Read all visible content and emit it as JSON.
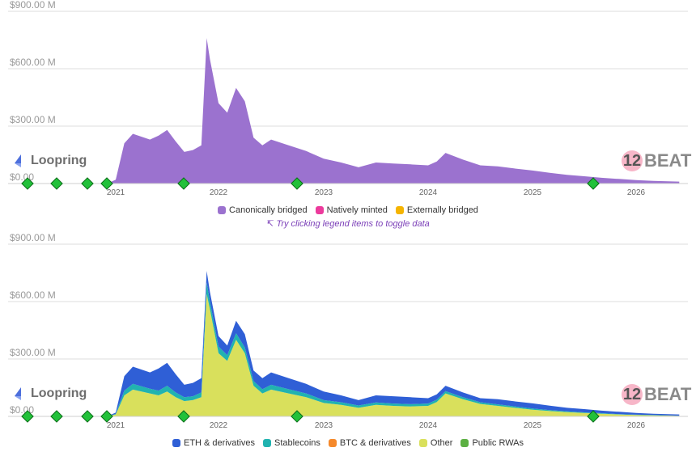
{
  "colors": {
    "canonically_bridged": "#9b72cf",
    "natively_minted": "#ec3a9c",
    "externally_bridged": "#f5b400",
    "eth": "#2f5fd6",
    "stablecoins": "#21b3b0",
    "btc": "#f5892b",
    "other": "#d9e05c",
    "public_rwas": "#5cb043",
    "grid": "#dddddd",
    "axis_text": "#9a9a9a",
    "marker": "#22c13a"
  },
  "brand": {
    "name": "Loopring",
    "icon": "loopring-logo-icon"
  },
  "watermark": {
    "text": "BEAT",
    "digit": "12",
    "icon": "l2beat-logo-icon"
  },
  "hint": {
    "text": "Try clicking legend items to toggle data",
    "icon": "cursor-click-icon"
  },
  "legend_top": [
    {
      "label": "Canonically bridged",
      "color": "#9b72cf"
    },
    {
      "label": "Natively minted",
      "color": "#ec3a9c"
    },
    {
      "label": "Externally bridged",
      "color": "#f5b400"
    }
  ],
  "legend_bottom": [
    {
      "label": "ETH & derivatives",
      "color": "#2f5fd6"
    },
    {
      "label": "Stablecoins",
      "color": "#21b3b0"
    },
    {
      "label": "BTC & derivatives",
      "color": "#f5892b"
    },
    {
      "label": "Other",
      "color": "#d9e05c"
    },
    {
      "label": "Public RWAs",
      "color": "#5cb043"
    }
  ],
  "chart_data": [
    {
      "type": "area",
      "title": "",
      "xlabel": "",
      "ylabel": "",
      "x_ticks": [
        "2021",
        "2022",
        "2023",
        "2024",
        "2025",
        "2026"
      ],
      "y_ticks": [
        "$0.00",
        "$300.00 M",
        "$600.00 M",
        "$900.00 M"
      ],
      "ylim": [
        0,
        900
      ],
      "y_unit": "M USD",
      "grid": true,
      "legend_position": "bottom",
      "x": [
        "2020-12",
        "2021-01",
        "2021-02",
        "2021-03",
        "2021-05",
        "2021-06",
        "2021-07",
        "2021-08",
        "2021-09",
        "2021-10",
        "2021-11",
        "2021-11-20",
        "2021-12",
        "2022-01",
        "2022-02",
        "2022-03",
        "2022-04",
        "2022-05",
        "2022-06",
        "2022-07",
        "2022-09",
        "2022-11",
        "2023-01",
        "2023-03",
        "2023-05",
        "2023-07",
        "2023-09",
        "2023-11",
        "2024-01",
        "2024-02",
        "2024-03",
        "2024-05",
        "2024-07",
        "2024-09",
        "2024-11",
        "2025-01",
        "2025-03",
        "2025-05",
        "2025-07",
        "2025-09",
        "2025-11",
        "2026-01",
        "2026-03",
        "2026-06"
      ],
      "series": [
        {
          "name": "Canonically bridged",
          "values": [
            0,
            20,
            210,
            260,
            230,
            250,
            280,
            220,
            165,
            175,
            200,
            760,
            650,
            420,
            370,
            500,
            430,
            240,
            200,
            230,
            200,
            170,
            130,
            110,
            85,
            110,
            105,
            100,
            95,
            115,
            160,
            125,
            95,
            90,
            78,
            68,
            56,
            45,
            38,
            30,
            24,
            18,
            14,
            10
          ]
        },
        {
          "name": "Natively minted",
          "values": [
            0,
            0,
            0,
            0,
            0,
            0,
            0,
            0,
            0,
            0,
            0,
            0,
            0,
            0,
            0,
            0,
            0,
            0,
            0,
            0,
            0,
            0,
            0,
            0,
            0,
            0,
            0,
            0,
            0,
            0,
            0,
            0,
            0,
            0,
            0,
            0,
            0,
            0,
            0,
            0,
            0,
            0,
            0,
            0
          ]
        },
        {
          "name": "Externally bridged",
          "values": [
            0,
            0,
            0,
            0,
            0,
            0,
            0,
            0,
            0,
            0,
            0,
            0,
            0,
            0,
            0,
            0,
            0,
            0,
            0,
            0,
            0,
            0,
            0,
            0,
            0,
            0,
            0,
            0,
            0,
            0,
            0,
            0,
            0,
            0,
            0,
            0,
            0,
            0,
            0,
            0,
            0,
            0,
            0,
            0
          ]
        }
      ]
    },
    {
      "type": "area",
      "title": "",
      "xlabel": "",
      "ylabel": "",
      "x_ticks": [
        "2021",
        "2022",
        "2023",
        "2024",
        "2025",
        "2026"
      ],
      "y_ticks": [
        "$0.00",
        "$300.00 M",
        "$600.00 M",
        "$900.00 M"
      ],
      "ylim": [
        0,
        900
      ],
      "y_unit": "M USD",
      "grid": true,
      "legend_position": "bottom",
      "x": [
        "2020-12",
        "2021-01",
        "2021-02",
        "2021-03",
        "2021-05",
        "2021-06",
        "2021-07",
        "2021-08",
        "2021-09",
        "2021-10",
        "2021-11",
        "2021-11-20",
        "2021-12",
        "2022-01",
        "2022-02",
        "2022-03",
        "2022-04",
        "2022-05",
        "2022-06",
        "2022-07",
        "2022-09",
        "2022-11",
        "2023-01",
        "2023-03",
        "2023-05",
        "2023-07",
        "2023-09",
        "2023-11",
        "2024-01",
        "2024-02",
        "2024-03",
        "2024-05",
        "2024-07",
        "2024-09",
        "2024-11",
        "2025-01",
        "2025-03",
        "2025-05",
        "2025-07",
        "2025-09",
        "2025-11",
        "2026-01",
        "2026-03",
        "2026-06"
      ],
      "series": [
        {
          "name": "Other",
          "values": [
            0,
            10,
            110,
            140,
            120,
            110,
            130,
            100,
            80,
            85,
            100,
            640,
            560,
            330,
            290,
            400,
            330,
            160,
            120,
            140,
            120,
            100,
            70,
            60,
            45,
            60,
            55,
            52,
            55,
            75,
            120,
            90,
            65,
            55,
            45,
            35,
            28,
            22,
            18,
            14,
            10,
            7,
            5,
            3
          ]
        },
        {
          "name": "Public RWAs",
          "values": [
            0,
            0,
            0,
            0,
            0,
            0,
            0,
            0,
            0,
            0,
            0,
            0,
            0,
            0,
            0,
            0,
            0,
            0,
            0,
            0,
            0,
            0,
            0,
            0,
            0,
            0,
            0,
            0,
            0,
            0,
            0,
            0,
            0,
            0,
            0,
            0,
            0,
            0,
            0,
            0,
            0,
            0,
            0,
            0
          ]
        },
        {
          "name": "BTC & derivatives",
          "values": [
            0,
            0,
            0,
            0,
            0,
            0,
            0,
            0,
            0,
            0,
            0,
            0,
            0,
            0,
            0,
            0,
            0,
            0,
            0,
            0,
            0,
            0,
            0,
            0,
            0,
            0,
            0,
            0,
            0,
            0,
            0,
            0,
            0,
            0,
            0,
            0,
            0,
            0,
            0,
            0,
            0,
            0,
            0,
            0
          ]
        },
        {
          "name": "Stablecoins",
          "values": [
            0,
            3,
            25,
            30,
            25,
            25,
            30,
            25,
            20,
            20,
            25,
            60,
            40,
            35,
            30,
            35,
            30,
            25,
            22,
            25,
            22,
            20,
            15,
            14,
            12,
            13,
            12,
            12,
            12,
            12,
            12,
            10,
            9,
            8,
            7,
            6,
            5,
            4,
            3,
            3,
            2,
            2,
            2,
            1
          ]
        },
        {
          "name": "ETH & derivatives",
          "values": [
            0,
            7,
            75,
            90,
            85,
            115,
            120,
            95,
            65,
            70,
            75,
            60,
            50,
            55,
            50,
            65,
            70,
            55,
            58,
            65,
            58,
            50,
            45,
            36,
            28,
            37,
            38,
            36,
            28,
            28,
            28,
            25,
            21,
            27,
            26,
            27,
            23,
            19,
            17,
            13,
            12,
            9,
            7,
            6
          ]
        }
      ]
    }
  ]
}
